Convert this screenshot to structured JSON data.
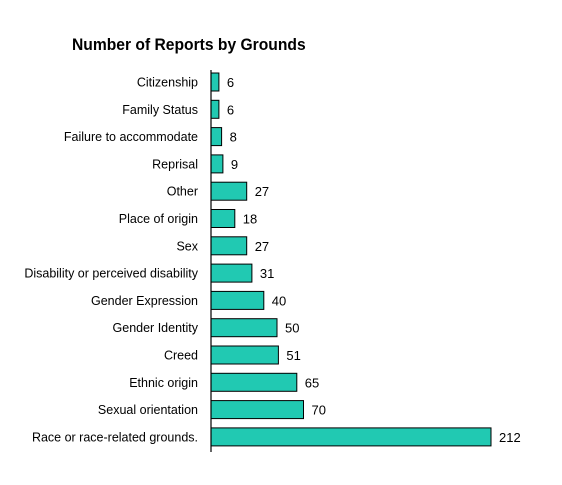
{
  "chart_data": {
    "type": "bar",
    "orientation": "horizontal",
    "title": "Number of Reports by Grounds",
    "xlabel": "",
    "ylabel": "",
    "categories": [
      "Citizenship",
      "Family Status",
      "Failure to accommodate",
      "Reprisal",
      "Other",
      "Place of origin",
      "Sex",
      "Disability or perceived disability",
      "Gender Expression",
      "Gender Identity",
      "Creed",
      "Ethnic origin",
      "Sexual orientation",
      "Race or race-related grounds."
    ],
    "values": [
      6,
      6,
      8,
      9,
      27,
      18,
      27,
      31,
      40,
      50,
      51,
      65,
      70,
      212
    ],
    "xlim": [
      0,
      212
    ],
    "grid": false,
    "legend": "none",
    "bar_color": "#21c9b2",
    "bar_outline_color": "#000000"
  }
}
